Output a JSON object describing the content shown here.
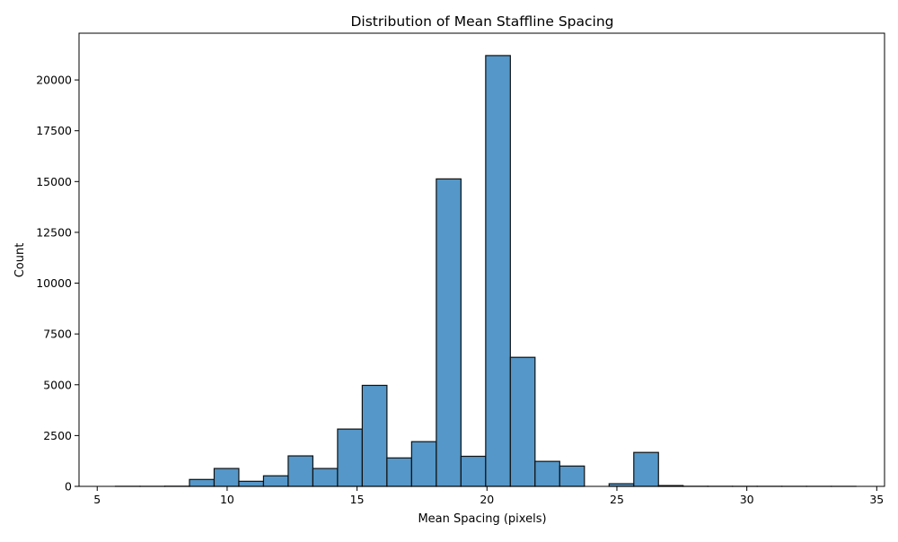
{
  "chart_data": {
    "type": "bar",
    "title": "Distribution of Mean Staffline Spacing",
    "xlabel": "Mean Spacing (pixels)",
    "ylabel": "Count",
    "xlim": [
      4.3,
      35.3
    ],
    "ylim": [
      0,
      22300
    ],
    "xticks": [
      5,
      10,
      15,
      20,
      25,
      30,
      35
    ],
    "yticks": [
      0,
      2500,
      5000,
      7500,
      10000,
      12500,
      15000,
      17500,
      20000
    ],
    "bar_color": "#5497c8",
    "edge_color": "#111111",
    "grid": false,
    "legend": "none",
    "bins": [
      {
        "x0": 5.7,
        "x1": 6.65,
        "count": 3
      },
      {
        "x0": 6.65,
        "x1": 7.6,
        "count": 2
      },
      {
        "x0": 7.6,
        "x1": 8.55,
        "count": 8
      },
      {
        "x0": 8.55,
        "x1": 9.5,
        "count": 340
      },
      {
        "x0": 9.5,
        "x1": 10.45,
        "count": 880
      },
      {
        "x0": 10.45,
        "x1": 11.4,
        "count": 250
      },
      {
        "x0": 11.4,
        "x1": 12.35,
        "count": 520
      },
      {
        "x0": 12.35,
        "x1": 13.3,
        "count": 1500
      },
      {
        "x0": 13.3,
        "x1": 14.25,
        "count": 880
      },
      {
        "x0": 14.25,
        "x1": 15.2,
        "count": 2820
      },
      {
        "x0": 15.2,
        "x1": 16.15,
        "count": 4970
      },
      {
        "x0": 16.15,
        "x1": 17.1,
        "count": 1400
      },
      {
        "x0": 17.1,
        "x1": 18.05,
        "count": 2200
      },
      {
        "x0": 18.05,
        "x1": 19.0,
        "count": 15130
      },
      {
        "x0": 19.0,
        "x1": 19.95,
        "count": 1480
      },
      {
        "x0": 19.95,
        "x1": 20.9,
        "count": 21200
      },
      {
        "x0": 20.9,
        "x1": 21.85,
        "count": 6350
      },
      {
        "x0": 21.85,
        "x1": 22.8,
        "count": 1230
      },
      {
        "x0": 22.8,
        "x1": 23.75,
        "count": 1000
      },
      {
        "x0": 23.75,
        "x1": 24.7,
        "count": 0
      },
      {
        "x0": 24.7,
        "x1": 25.65,
        "count": 130
      },
      {
        "x0": 25.65,
        "x1": 26.6,
        "count": 1670
      },
      {
        "x0": 26.6,
        "x1": 27.55,
        "count": 40
      },
      {
        "x0": 27.55,
        "x1": 28.5,
        "count": 4
      },
      {
        "x0": 28.5,
        "x1": 29.45,
        "count": 3
      },
      {
        "x0": 29.45,
        "x1": 30.4,
        "count": 2
      },
      {
        "x0": 30.4,
        "x1": 31.35,
        "count": 2
      },
      {
        "x0": 31.35,
        "x1": 32.3,
        "count": 1
      },
      {
        "x0": 32.3,
        "x1": 33.25,
        "count": 1
      },
      {
        "x0": 33.25,
        "x1": 34.2,
        "count": 1
      }
    ]
  }
}
